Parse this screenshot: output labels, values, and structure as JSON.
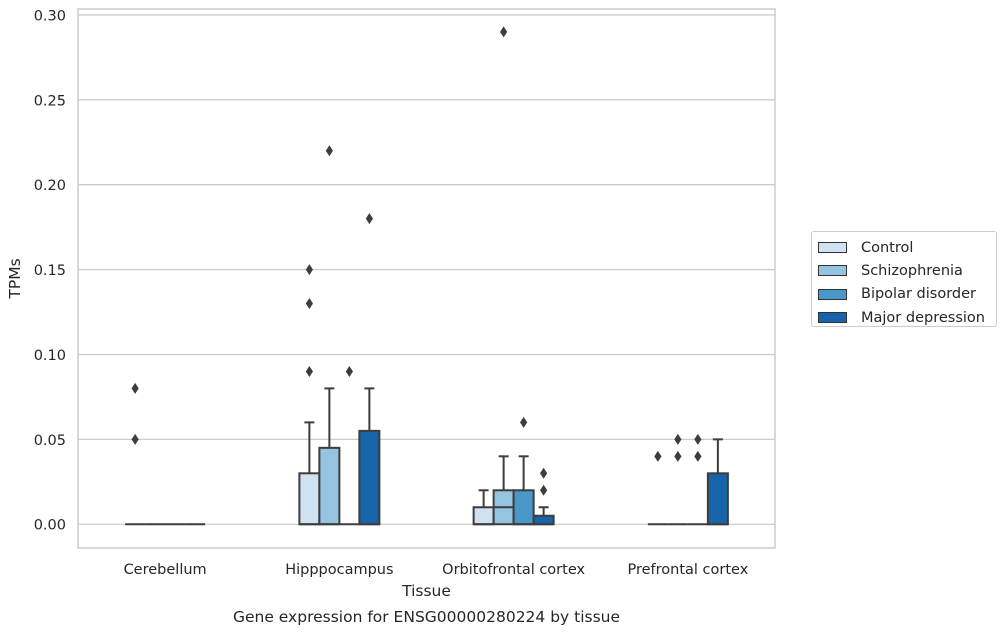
{
  "chart_data": {
    "type": "box",
    "title": "Gene expression for ENSG00000280224 by tissue",
    "xlabel": "Tissue",
    "ylabel": "TPMs",
    "ylim": [
      -0.014,
      0.3035
    ],
    "yticks": [
      "0.00",
      "0.05",
      "0.10",
      "0.15",
      "0.20",
      "0.25",
      "0.30"
    ],
    "ytick_values": [
      0,
      0.05,
      0.1,
      0.15,
      0.2,
      0.25,
      0.3
    ],
    "categories": [
      "Cerebellum",
      "Hipppocampus",
      "Orbitofrontal cortex",
      "Prefrontal cortex"
    ],
    "grid": "horizontal",
    "legend_position": "right",
    "series": [
      {
        "name": "Control",
        "color": "#d0e1f2",
        "boxes": [
          {
            "q1": 0,
            "median": 0,
            "q3": 0,
            "whisker_low": 0,
            "whisker_high": 0,
            "outliers": [
              0.05,
              0.08
            ]
          },
          {
            "q1": 0,
            "median": 0,
            "q3": 0.03,
            "whisker_low": 0,
            "whisker_high": 0.06,
            "outliers": [
              0.09,
              0.13,
              0.15
            ]
          },
          {
            "q1": 0,
            "median": 0,
            "q3": 0.01,
            "whisker_low": 0,
            "whisker_high": 0.02,
            "outliers": []
          },
          {
            "q1": 0,
            "median": 0,
            "q3": 0,
            "whisker_low": 0,
            "whisker_high": 0,
            "outliers": [
              0.04
            ]
          }
        ]
      },
      {
        "name": "Schizophrenia",
        "color": "#94c4df",
        "boxes": [
          {
            "q1": 0,
            "median": 0,
            "q3": 0,
            "whisker_low": 0,
            "whisker_high": 0,
            "outliers": []
          },
          {
            "q1": 0,
            "median": 0,
            "q3": 0.045,
            "whisker_low": 0,
            "whisker_high": 0.08,
            "outliers": [
              0.22
            ]
          },
          {
            "q1": 0,
            "median": 0.01,
            "q3": 0.02,
            "whisker_low": 0,
            "whisker_high": 0.04,
            "outliers": [
              0.29
            ]
          },
          {
            "q1": 0,
            "median": 0,
            "q3": 0,
            "whisker_low": 0,
            "whisker_high": 0,
            "outliers": [
              0.04,
              0.05
            ]
          }
        ]
      },
      {
        "name": "Bipolar disorder",
        "color": "#4a98c9",
        "boxes": [
          {
            "q1": 0,
            "median": 0,
            "q3": 0,
            "whisker_low": 0,
            "whisker_high": 0,
            "outliers": []
          },
          {
            "q1": 0,
            "median": 0,
            "q3": 0,
            "whisker_low": 0,
            "whisker_high": 0,
            "outliers": [
              0.09
            ]
          },
          {
            "q1": 0,
            "median": 0,
            "q3": 0.02,
            "whisker_low": 0,
            "whisker_high": 0.04,
            "outliers": [
              0.06
            ]
          },
          {
            "q1": 0,
            "median": 0,
            "q3": 0,
            "whisker_low": 0,
            "whisker_high": 0,
            "outliers": [
              0.04,
              0.05
            ]
          }
        ]
      },
      {
        "name": "Major depression",
        "color": "#1764ab",
        "boxes": [
          {
            "q1": 0,
            "median": 0,
            "q3": 0,
            "whisker_low": 0,
            "whisker_high": 0,
            "outliers": []
          },
          {
            "q1": 0,
            "median": 0,
            "q3": 0.055,
            "whisker_low": 0,
            "whisker_high": 0.08,
            "outliers": [
              0.18
            ]
          },
          {
            "q1": 0,
            "median": 0,
            "q3": 0.005,
            "whisker_low": 0,
            "whisker_high": 0.01,
            "outliers": [
              0.02,
              0.03
            ]
          },
          {
            "q1": 0,
            "median": 0,
            "q3": 0.03,
            "whisker_low": 0,
            "whisker_high": 0.05,
            "outliers": []
          }
        ]
      }
    ]
  }
}
